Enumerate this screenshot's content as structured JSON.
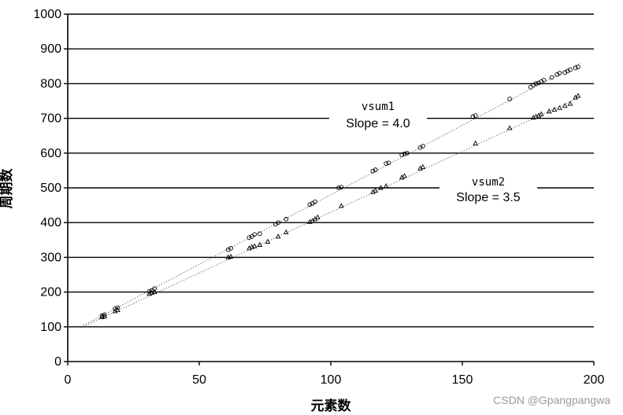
{
  "chart_data": {
    "type": "scatter",
    "xlabel": "元素数",
    "ylabel": "周期数",
    "xlim": [
      0,
      200
    ],
    "ylim": [
      0,
      1000
    ],
    "xticks": [
      0,
      50,
      100,
      150,
      200
    ],
    "yticks": [
      0,
      100,
      200,
      300,
      400,
      500,
      600,
      700,
      800,
      900,
      1000
    ],
    "grid": "horizontal",
    "series": [
      {
        "name": "vsum1",
        "slope_label": "Slope = 4.0",
        "fit": {
          "slope": 4.0,
          "intercept": 80,
          "x_range": [
            5,
            195
          ]
        },
        "marker": "circle",
        "points": [
          [
            13,
            132
          ],
          [
            14,
            135
          ],
          [
            18,
            152
          ],
          [
            19,
            155
          ],
          [
            31,
            202
          ],
          [
            32,
            205
          ],
          [
            33,
            210
          ],
          [
            61,
            322
          ],
          [
            62,
            326
          ],
          [
            69,
            357
          ],
          [
            70,
            360
          ],
          [
            71,
            366
          ],
          [
            73,
            368
          ],
          [
            79,
            395
          ],
          [
            80,
            400
          ],
          [
            83,
            410
          ],
          [
            92,
            452
          ],
          [
            93,
            455
          ],
          [
            94,
            460
          ],
          [
            103,
            500
          ],
          [
            104,
            502
          ],
          [
            116,
            548
          ],
          [
            117,
            552
          ],
          [
            121,
            570
          ],
          [
            122,
            572
          ],
          [
            127,
            595
          ],
          [
            128,
            598
          ],
          [
            129,
            600
          ],
          [
            134,
            616
          ],
          [
            135,
            620
          ],
          [
            154,
            705
          ],
          [
            155,
            708
          ],
          [
            168,
            756
          ],
          [
            176,
            790
          ],
          [
            177,
            796
          ],
          [
            178,
            800
          ],
          [
            179,
            802
          ],
          [
            180,
            806
          ],
          [
            181,
            810
          ],
          [
            184,
            818
          ],
          [
            186,
            826
          ],
          [
            187,
            830
          ],
          [
            189,
            832
          ],
          [
            190,
            836
          ],
          [
            191,
            840
          ],
          [
            193,
            845
          ],
          [
            194,
            848
          ]
        ]
      },
      {
        "name": "vsum2",
        "slope_label": "Slope = 3.5",
        "fit": {
          "slope": 3.5,
          "intercept": 80,
          "x_range": [
            5,
            195
          ]
        },
        "marker": "triangle",
        "points": [
          [
            13,
            128
          ],
          [
            14,
            130
          ],
          [
            18,
            145
          ],
          [
            19,
            148
          ],
          [
            31,
            195
          ],
          [
            32,
            198
          ],
          [
            33,
            200
          ],
          [
            61,
            300
          ],
          [
            62,
            302
          ],
          [
            69,
            326
          ],
          [
            70,
            330
          ],
          [
            71,
            332
          ],
          [
            73,
            336
          ],
          [
            76,
            345
          ],
          [
            80,
            360
          ],
          [
            83,
            372
          ],
          [
            92,
            402
          ],
          [
            93,
            405
          ],
          [
            94,
            410
          ],
          [
            95,
            415
          ],
          [
            104,
            448
          ],
          [
            116,
            488
          ],
          [
            117,
            492
          ],
          [
            119,
            500
          ],
          [
            121,
            505
          ],
          [
            127,
            530
          ],
          [
            128,
            534
          ],
          [
            134,
            556
          ],
          [
            135,
            560
          ],
          [
            155,
            628
          ],
          [
            168,
            672
          ],
          [
            177,
            702
          ],
          [
            178,
            705
          ],
          [
            179,
            708
          ],
          [
            180,
            712
          ],
          [
            183,
            720
          ],
          [
            185,
            725
          ],
          [
            187,
            730
          ],
          [
            189,
            736
          ],
          [
            191,
            742
          ],
          [
            193,
            760
          ],
          [
            194,
            765
          ]
        ]
      }
    ],
    "watermark": "CSDN @Gpangpangwa"
  }
}
